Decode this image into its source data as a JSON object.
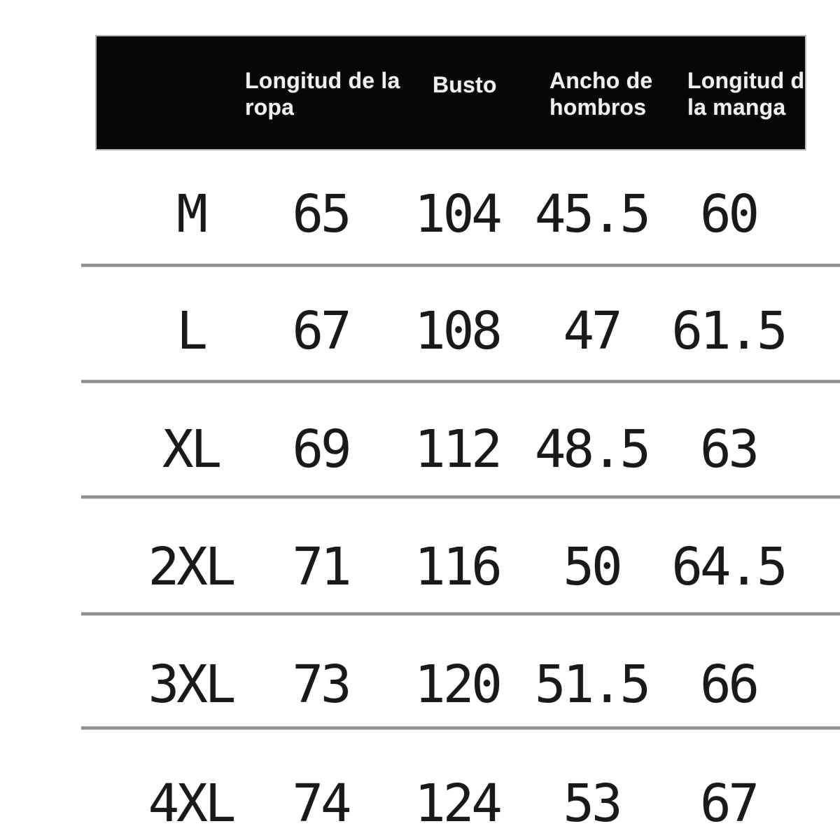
{
  "chart_data": {
    "type": "table",
    "columns": [
      "",
      "Longitud de la ropa",
      "Busto",
      "Ancho de hombros",
      "Longitud de la manga"
    ],
    "rows": [
      {
        "size": "M",
        "values": [
          "65",
          "104",
          "45.5",
          "60"
        ]
      },
      {
        "size": "L",
        "values": [
          "67",
          "108",
          "47",
          "61.5"
        ]
      },
      {
        "size": "XL",
        "values": [
          "69",
          "112",
          "48.5",
          "63"
        ]
      },
      {
        "size": "2XL",
        "values": [
          "71",
          "116",
          "50",
          "64.5"
        ]
      },
      {
        "size": "3XL",
        "values": [
          "73",
          "120",
          "51.5",
          "66"
        ]
      },
      {
        "size": "4XL",
        "values": [
          "74",
          "124",
          "53",
          "67"
        ]
      }
    ]
  },
  "colors": {
    "background": "#ffffff",
    "header_bg": "#070707",
    "header_text": "#f0f0f0",
    "body_text": "#191919",
    "divider": "#8f8f8f"
  }
}
